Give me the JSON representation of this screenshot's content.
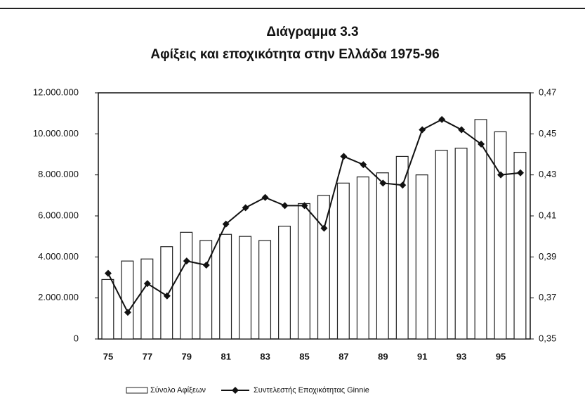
{
  "chart_data": {
    "type": "bar-line",
    "title": "Διάγραμμα 3.3",
    "subtitle": "Αφίξεις και εποχικότητα στην Ελλάδα 1975-96",
    "categories": [
      "75",
      null,
      "77",
      null,
      "79",
      null,
      "81",
      null,
      "83",
      null,
      "85",
      null,
      "87",
      null,
      "89",
      null,
      "91",
      null,
      "93",
      null,
      "95",
      null
    ],
    "series": [
      {
        "name": "Σύνολο Αφίξεων",
        "type": "bar",
        "color": "#ffffff",
        "values": [
          2900000,
          3800000,
          3900000,
          4500000,
          5200000,
          4800000,
          5100000,
          5000000,
          4800000,
          5500000,
          6600000,
          7000000,
          7600000,
          7900000,
          8100000,
          8900000,
          8000000,
          9200000,
          9300000,
          10700000,
          10100000,
          9100000
        ]
      },
      {
        "name": "Συντελεστής Εποχικότητας Ginnie",
        "type": "line",
        "axis": "y2",
        "color": "#111111",
        "values": [
          0.382,
          0.363,
          0.377,
          0.371,
          0.388,
          0.386,
          0.406,
          0.414,
          0.419,
          0.415,
          0.415,
          0.404,
          0.439,
          0.435,
          0.426,
          0.425,
          0.452,
          0.457,
          0.452,
          0.445,
          0.43,
          0.431
        ]
      }
    ],
    "ylim": [
      0,
      12000000
    ],
    "yticks": [
      0,
      {
        "value": 2000000,
        "label": "2.000.000"
      },
      {
        "value": 4000000,
        "label": "4.000.000"
      },
      {
        "value": 6000000,
        "label": "6.000.000"
      },
      {
        "value": 8000000,
        "label": "8.000.000"
      },
      {
        "value": 10000000,
        "label": "10.000.000"
      },
      {
        "value": 12000000,
        "label": "12.000.000"
      }
    ],
    "y2lim": [
      0.35,
      0.47
    ],
    "y2ticks": [
      {
        "value": 0.35,
        "label": "0,35"
      },
      {
        "value": 0.37,
        "label": "0,37"
      },
      {
        "value": 0.39,
        "label": "0,39"
      },
      {
        "value": 0.41,
        "label": "0,41"
      },
      {
        "value": 0.43,
        "label": "0,43"
      },
      {
        "value": 0.45,
        "label": "0,45"
      },
      {
        "value": 0.47,
        "label": "0,47"
      }
    ],
    "legend": "bottom"
  }
}
